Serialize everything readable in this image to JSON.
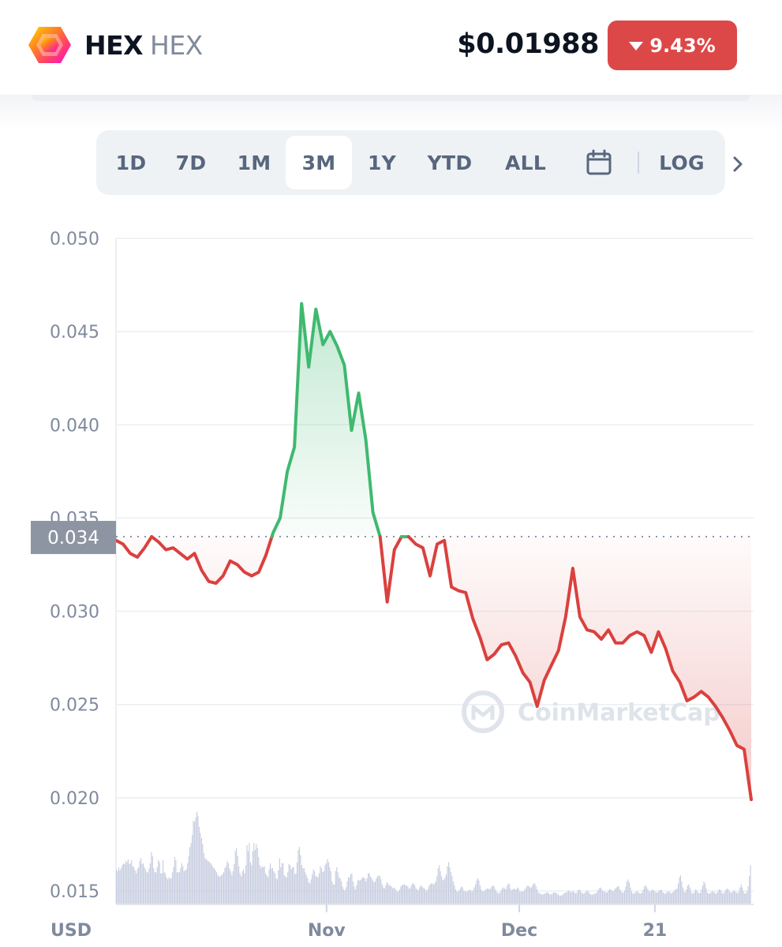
{
  "header": {
    "coin_name": "HEX",
    "coin_symbol": "HEX",
    "price": "$0.01988",
    "change": "9.43%",
    "change_direction": "down",
    "change_color": "#dc4848",
    "logo_icon": "hex-logo-icon"
  },
  "range_selector": {
    "buttons": [
      "1D",
      "7D",
      "1M",
      "3M",
      "1Y",
      "YTD",
      "ALL"
    ],
    "active": "3M",
    "calendar_icon": "calendar-icon",
    "log_label": "LOG",
    "next_icon": "chevron-right-icon"
  },
  "colors": {
    "up": "#3fb970",
    "down": "#d9413e",
    "grid": "#eceff3",
    "volume": "#c7cde0",
    "baseline_label_bg": "#8d95a3"
  },
  "chart_data": {
    "type": "line",
    "currency_label": "USD",
    "watermark": "CoinMarketCap",
    "baseline": 0.034,
    "baseline_label": "0.034",
    "ylim": [
      0.015,
      0.05
    ],
    "yticks": [
      "0.050",
      "0.045",
      "0.040",
      "0.035",
      "0.030",
      "0.025",
      "0.020",
      "0.015"
    ],
    "ytick_values": [
      0.05,
      0.045,
      0.04,
      0.035,
      0.03,
      0.025,
      0.02,
      0.015
    ],
    "xlim": [
      0,
      89
    ],
    "xticks": [
      {
        "label": "Nov",
        "x": 29.5
      },
      {
        "label": "Dec",
        "x": 56.5
      },
      {
        "label": "21",
        "x": 75.5
      }
    ],
    "series": [
      {
        "x": [
          0,
          1,
          2,
          3,
          4,
          5,
          6,
          7,
          8,
          9,
          10,
          11,
          12,
          13,
          14,
          15,
          16,
          17,
          18,
          19,
          20,
          21,
          22,
          23,
          24,
          25,
          26,
          27,
          28,
          29,
          30,
          31,
          32,
          33,
          34,
          35,
          36,
          37,
          38,
          39,
          40,
          41,
          42,
          43,
          44,
          45,
          46,
          47,
          48,
          49,
          50,
          51,
          52,
          53,
          54,
          55,
          56,
          57,
          58,
          59,
          60,
          61,
          62,
          63,
          64,
          65,
          66,
          67,
          68,
          69,
          70,
          71,
          72,
          73,
          74,
          75,
          76,
          77,
          78,
          79,
          80,
          81,
          82,
          83,
          84,
          85,
          86,
          87,
          88,
          89
        ],
        "y": [
          0.0338,
          0.0336,
          0.0331,
          0.0329,
          0.0334,
          0.034,
          0.0337,
          0.0333,
          0.0334,
          0.0331,
          0.0328,
          0.0331,
          0.0322,
          0.0316,
          0.0315,
          0.0319,
          0.0327,
          0.0325,
          0.0321,
          0.0319,
          0.0321,
          0.033,
          0.0342,
          0.035,
          0.0375,
          0.0388,
          0.0465,
          0.0431,
          0.0462,
          0.0443,
          0.045,
          0.0442,
          0.0432,
          0.0397,
          0.0417,
          0.0392,
          0.0353,
          0.034,
          0.0305,
          0.0333,
          0.034,
          0.034,
          0.0336,
          0.0334,
          0.0319,
          0.0336,
          0.0338,
          0.0313,
          0.0311,
          0.031,
          0.0296,
          0.0286,
          0.0274,
          0.0277,
          0.0282,
          0.0283,
          0.0276,
          0.0267,
          0.0262,
          0.0249,
          0.0263,
          0.0271,
          0.0279,
          0.0297,
          0.0323,
          0.0297,
          0.029,
          0.0289,
          0.0285,
          0.029,
          0.0283,
          0.0283,
          0.0287,
          0.0289,
          0.0287,
          0.0278,
          0.0289,
          0.028,
          0.0268,
          0.0262,
          0.0252,
          0.0254,
          0.0257,
          0.0254,
          0.0249,
          0.0243,
          0.0236,
          0.0228,
          0.0226,
          0.0199
        ]
      }
    ],
    "volume_series": [
      0.34,
      0.32,
      0.36,
      0.33,
      0.35,
      0.38,
      0.4,
      0.39,
      0.42,
      0.41,
      0.44,
      0.39,
      0.4,
      0.43,
      0.37,
      0.36,
      0.33,
      0.3,
      0.34,
      0.36,
      0.42,
      0.45,
      0.39,
      0.4,
      0.36,
      0.34,
      0.31,
      0.31,
      0.35,
      0.4,
      0.51,
      0.47,
      0.35,
      0.31,
      0.31,
      0.36,
      0.43,
      0.41,
      0.3,
      0.3,
      0.43,
      0.31,
      0.3,
      0.26,
      0.24,
      0.26,
      0.25,
      0.25,
      0.31,
      0.36,
      0.46,
      0.43,
      0.31,
      0.31,
      0.31,
      0.35,
      0.4,
      0.37,
      0.32,
      0.33,
      0.34,
      0.4,
      0.47,
      0.56,
      0.6,
      0.68,
      0.82,
      0.81,
      0.85,
      0.91,
      0.87,
      0.76,
      0.7,
      0.65,
      0.59,
      0.5,
      0.45,
      0.44,
      0.43,
      0.42,
      0.41,
      0.4,
      0.38,
      0.36,
      0.35,
      0.33,
      0.31,
      0.28,
      0.27,
      0.27,
      0.28,
      0.29,
      0.31,
      0.35,
      0.37,
      0.42,
      0.4,
      0.35,
      0.32,
      0.28,
      0.32,
      0.39,
      0.52,
      0.55,
      0.47,
      0.37,
      0.3,
      0.27,
      0.32,
      0.34,
      0.3,
      0.38,
      0.58,
      0.52,
      0.6,
      0.41,
      0.38,
      0.52,
      0.6,
      0.53,
      0.59,
      0.55,
      0.46,
      0.38,
      0.35,
      0.37,
      0.36,
      0.37,
      0.3,
      0.28,
      0.26,
      0.34,
      0.4,
      0.35,
      0.35,
      0.32,
      0.3,
      0.25,
      0.24,
      0.33,
      0.45,
      0.36,
      0.4,
      0.4,
      0.28,
      0.27,
      0.26,
      0.31,
      0.39,
      0.38,
      0.34,
      0.36,
      0.36,
      0.29,
      0.3,
      0.41,
      0.53,
      0.56,
      0.48,
      0.38,
      0.35,
      0.35,
      0.31,
      0.28,
      0.25,
      0.21,
      0.2,
      0.24,
      0.29,
      0.34,
      0.32,
      0.27,
      0.27,
      0.26,
      0.3,
      0.37,
      0.35,
      0.31,
      0.32,
      0.38,
      0.4,
      0.44,
      0.41,
      0.36,
      0.32,
      0.22,
      0.19,
      0.19,
      0.32,
      0.36,
      0.31,
      0.26,
      0.25,
      0.22,
      0.17,
      0.14,
      0.13,
      0.16,
      0.22,
      0.26,
      0.26,
      0.29,
      0.3,
      0.22,
      0.17,
      0.14,
      0.18,
      0.23,
      0.23,
      0.23,
      0.24,
      0.26,
      0.26,
      0.25,
      0.22,
      0.25,
      0.3,
      0.3,
      0.27,
      0.25,
      0.23,
      0.21,
      0.22,
      0.25,
      0.27,
      0.28,
      0.27,
      0.24,
      0.19,
      0.16,
      0.15,
      0.18,
      0.21,
      0.2,
      0.18,
      0.18,
      0.17,
      0.15,
      0.16,
      0.15,
      0.13,
      0.12,
      0.12,
      0.14,
      0.17,
      0.18,
      0.19,
      0.19,
      0.18,
      0.18,
      0.17,
      0.15,
      0.15,
      0.18,
      0.2,
      0.2,
      0.18,
      0.15,
      0.14,
      0.13,
      0.16,
      0.18,
      0.17,
      0.16,
      0.15,
      0.14,
      0.12,
      0.14,
      0.17,
      0.19,
      0.2,
      0.2,
      0.19,
      0.2,
      0.22,
      0.27,
      0.35,
      0.38,
      0.32,
      0.27,
      0.23,
      0.24,
      0.26,
      0.29,
      0.37,
      0.41,
      0.36,
      0.31,
      0.27,
      0.22,
      0.18,
      0.14,
      0.12,
      0.12,
      0.13,
      0.15,
      0.17,
      0.16,
      0.13,
      0.12,
      0.12,
      0.12,
      0.13,
      0.14,
      0.13,
      0.12,
      0.13,
      0.16,
      0.19,
      0.23,
      0.25,
      0.23,
      0.18,
      0.14,
      0.12,
      0.12,
      0.13,
      0.14,
      0.15,
      0.15,
      0.14,
      0.15,
      0.17,
      0.18,
      0.17,
      0.14,
      0.12,
      0.11,
      0.1,
      0.11,
      0.13,
      0.15,
      0.16,
      0.15,
      0.14,
      0.17,
      0.2,
      0.19,
      0.15,
      0.13,
      0.14,
      0.15,
      0.14,
      0.14,
      0.16,
      0.15,
      0.12,
      0.12,
      0.12,
      0.12,
      0.13,
      0.15,
      0.17,
      0.18,
      0.17,
      0.16,
      0.16,
      0.18,
      0.2,
      0.2,
      0.17,
      0.14,
      0.11,
      0.1,
      0.1,
      0.09,
      0.09,
      0.1,
      0.1,
      0.11,
      0.11,
      0.1,
      0.09,
      0.09,
      0.1,
      0.11,
      0.11,
      0.11,
      0.1,
      0.09,
      0.08,
      0.08,
      0.08,
      0.09,
      0.1,
      0.11,
      0.11,
      0.12,
      0.13,
      0.12,
      0.11,
      0.12,
      0.12,
      0.11,
      0.1,
      0.11,
      0.13,
      0.14,
      0.13,
      0.11,
      0.1,
      0.1,
      0.11,
      0.12,
      0.13,
      0.12,
      0.1,
      0.09,
      0.09,
      0.09,
      0.1,
      0.1,
      0.11,
      0.13,
      0.15,
      0.16,
      0.15,
      0.13,
      0.12,
      0.12,
      0.11,
      0.11,
      0.13,
      0.14,
      0.14,
      0.13,
      0.12,
      0.13,
      0.15,
      0.16,
      0.17,
      0.17,
      0.14,
      0.12,
      0.11,
      0.11,
      0.13,
      0.17,
      0.22,
      0.24,
      0.21,
      0.16,
      0.12,
      0.1,
      0.1,
      0.11,
      0.12,
      0.12,
      0.11,
      0.1,
      0.1,
      0.11,
      0.14,
      0.17,
      0.18,
      0.16,
      0.14,
      0.12,
      0.12,
      0.13,
      0.14,
      0.13,
      0.12,
      0.11,
      0.11,
      0.12,
      0.13,
      0.14,
      0.13,
      0.11,
      0.1,
      0.1,
      0.11,
      0.12,
      0.12,
      0.11,
      0.1,
      0.11,
      0.12,
      0.13,
      0.14,
      0.15,
      0.2,
      0.26,
      0.28,
      0.22,
      0.16,
      0.12,
      0.11,
      0.14,
      0.18,
      0.19,
      0.16,
      0.12,
      0.1,
      0.1,
      0.12,
      0.14,
      0.13,
      0.11,
      0.1,
      0.11,
      0.14,
      0.18,
      0.22,
      0.2,
      0.15,
      0.11,
      0.1,
      0.1,
      0.11,
      0.12,
      0.12,
      0.11,
      0.1,
      0.1,
      0.12,
      0.14,
      0.14,
      0.12,
      0.1,
      0.1,
      0.12,
      0.14,
      0.15,
      0.14,
      0.12,
      0.11,
      0.11,
      0.12,
      0.13,
      0.12,
      0.11,
      0.1,
      0.12,
      0.16,
      0.19,
      0.16,
      0.12,
      0.1,
      0.1,
      0.12,
      0.17,
      0.27,
      0.38
    ]
  }
}
